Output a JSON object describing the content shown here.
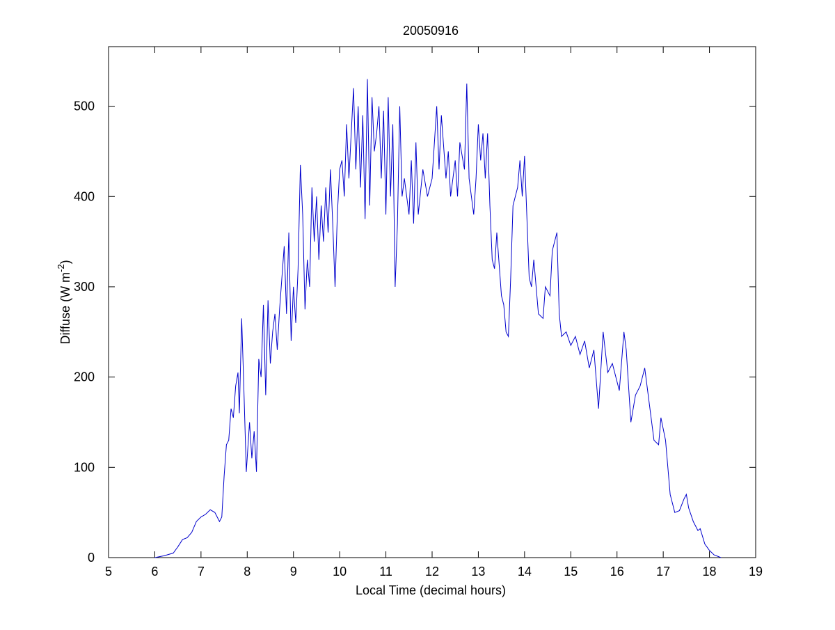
{
  "chart_data": {
    "type": "line",
    "title": "20050916",
    "xlabel": "Local Time (decimal hours)",
    "ylabel": [
      "Diffuse (W m",
      "-2",
      ")"
    ],
    "xlim": [
      5,
      19
    ],
    "xticks": [
      5,
      6,
      7,
      8,
      9,
      10,
      11,
      12,
      13,
      14,
      15,
      16,
      17,
      18,
      19
    ],
    "ylim": [
      0,
      566
    ],
    "yticks": [
      0,
      100,
      200,
      300,
      400,
      500
    ],
    "series": [
      {
        "color": "#0000cc",
        "x": [
          6.0,
          6.2,
          6.4,
          6.5,
          6.6,
          6.7,
          6.8,
          6.9,
          7.0,
          7.1,
          7.2,
          7.3,
          7.4,
          7.45,
          7.5,
          7.55,
          7.6,
          7.65,
          7.7,
          7.75,
          7.8,
          7.83,
          7.88,
          7.92,
          7.98,
          8.05,
          8.1,
          8.15,
          8.2,
          8.25,
          8.3,
          8.35,
          8.4,
          8.45,
          8.5,
          8.55,
          8.6,
          8.65,
          8.7,
          8.8,
          8.85,
          8.9,
          8.95,
          9.0,
          9.05,
          9.1,
          9.15,
          9.2,
          9.25,
          9.3,
          9.35,
          9.4,
          9.45,
          9.5,
          9.55,
          9.6,
          9.65,
          9.7,
          9.75,
          9.8,
          9.85,
          9.9,
          9.95,
          10.0,
          10.05,
          10.1,
          10.15,
          10.2,
          10.3,
          10.35,
          10.4,
          10.45,
          10.5,
          10.55,
          10.6,
          10.65,
          10.7,
          10.75,
          10.8,
          10.85,
          10.9,
          10.95,
          11.0,
          11.05,
          11.1,
          11.15,
          11.2,
          11.25,
          11.3,
          11.35,
          11.4,
          11.5,
          11.55,
          11.6,
          11.65,
          11.7,
          11.8,
          11.9,
          12.0,
          12.1,
          12.15,
          12.2,
          12.3,
          12.35,
          12.4,
          12.5,
          12.55,
          12.6,
          12.7,
          12.75,
          12.8,
          12.85,
          12.9,
          12.95,
          13.0,
          13.05,
          13.1,
          13.15,
          13.2,
          13.25,
          13.3,
          13.35,
          13.4,
          13.5,
          13.55,
          13.6,
          13.65,
          13.7,
          13.75,
          13.8,
          13.85,
          13.9,
          13.95,
          14.0,
          14.1,
          14.15,
          14.2,
          14.3,
          14.4,
          14.45,
          14.55,
          14.6,
          14.65,
          14.7,
          14.75,
          14.8,
          14.9,
          15.0,
          15.1,
          15.2,
          15.3,
          15.4,
          15.5,
          15.6,
          15.7,
          15.8,
          15.9,
          16.0,
          16.05,
          16.15,
          16.2,
          16.3,
          16.4,
          16.5,
          16.6,
          16.7,
          16.8,
          16.9,
          16.95,
          17.05,
          17.15,
          17.25,
          17.35,
          17.45,
          17.5,
          17.55,
          17.65,
          17.75,
          17.8,
          17.9,
          18.0,
          18.1,
          18.25
        ],
        "values": [
          0,
          2,
          5,
          12,
          20,
          22,
          28,
          40,
          45,
          48,
          53,
          50,
          40,
          45,
          90,
          125,
          130,
          165,
          155,
          190,
          205,
          160,
          265,
          200,
          95,
          150,
          110,
          140,
          95,
          220,
          200,
          280,
          180,
          285,
          215,
          250,
          270,
          230,
          275,
          345,
          270,
          360,
          240,
          300,
          260,
          320,
          435,
          380,
          275,
          330,
          300,
          410,
          350,
          400,
          330,
          390,
          350,
          410,
          360,
          430,
          370,
          300,
          380,
          430,
          440,
          400,
          480,
          420,
          520,
          430,
          500,
          410,
          490,
          375,
          530,
          390,
          510,
          450,
          470,
          500,
          420,
          495,
          380,
          510,
          400,
          480,
          300,
          370,
          500,
          400,
          420,
          380,
          440,
          370,
          460,
          380,
          430,
          400,
          420,
          500,
          430,
          490,
          420,
          450,
          400,
          440,
          400,
          460,
          430,
          525,
          420,
          400,
          380,
          420,
          480,
          440,
          470,
          420,
          470,
          390,
          330,
          320,
          360,
          290,
          280,
          250,
          245,
          310,
          390,
          400,
          410,
          440,
          400,
          445,
          310,
          300,
          330,
          270,
          265,
          300,
          290,
          340,
          350,
          360,
          270,
          245,
          250,
          235,
          245,
          225,
          240,
          210,
          230,
          165,
          250,
          205,
          215,
          195,
          185,
          250,
          230,
          150,
          180,
          190,
          210,
          170,
          130,
          125,
          155,
          130,
          70,
          50,
          52,
          65,
          70,
          55,
          40,
          30,
          32,
          15,
          8,
          3,
          0
        ]
      }
    ]
  }
}
